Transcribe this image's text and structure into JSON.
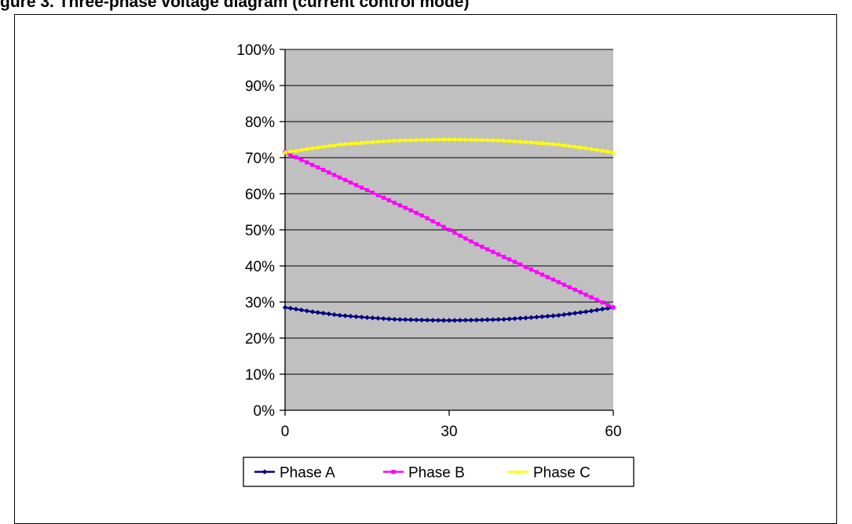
{
  "caption": "gure 3. Three-phase voltage diagram (current control mode)",
  "chart_data": {
    "type": "line",
    "xlim": [
      0,
      60
    ],
    "ylim": [
      0,
      100
    ],
    "x_ticks": [
      0,
      30,
      60
    ],
    "y_ticks": [
      0,
      10,
      20,
      30,
      40,
      50,
      60,
      70,
      80,
      90,
      100
    ],
    "y_tick_suffix": "%",
    "grid": "horizontal",
    "plot_background": "#c0c0c0",
    "legend_position": "bottom",
    "series": [
      {
        "name": "Phase A",
        "color": "#000080",
        "marker": "diamond",
        "points": [
          [
            0,
            28.5
          ],
          [
            5,
            27.3
          ],
          [
            10,
            26.3
          ],
          [
            15,
            25.7
          ],
          [
            20,
            25.2
          ],
          [
            25,
            25.0
          ],
          [
            30,
            24.9
          ],
          [
            35,
            25.0
          ],
          [
            40,
            25.2
          ],
          [
            45,
            25.7
          ],
          [
            50,
            26.3
          ],
          [
            55,
            27.3
          ],
          [
            60,
            28.5
          ]
        ]
      },
      {
        "name": "Phase B",
        "color": "#ff00ff",
        "marker": "square",
        "points": [
          [
            0,
            71.5
          ],
          [
            5,
            68.0
          ],
          [
            10,
            64.5
          ],
          [
            15,
            61.0
          ],
          [
            20,
            57.5
          ],
          [
            25,
            54.0
          ],
          [
            30,
            50.0
          ],
          [
            35,
            46.0
          ],
          [
            40,
            42.5
          ],
          [
            45,
            39.0
          ],
          [
            50,
            35.5
          ],
          [
            55,
            32.0
          ],
          [
            60,
            28.5
          ]
        ]
      },
      {
        "name": "Phase C",
        "color": "#ffff00",
        "marker": "triangle",
        "points": [
          [
            0,
            71.5
          ],
          [
            5,
            72.7
          ],
          [
            10,
            73.7
          ],
          [
            15,
            74.3
          ],
          [
            20,
            74.8
          ],
          [
            25,
            75.0
          ],
          [
            30,
            75.1
          ],
          [
            35,
            75.0
          ],
          [
            40,
            74.8
          ],
          [
            45,
            74.3
          ],
          [
            50,
            73.7
          ],
          [
            55,
            72.7
          ],
          [
            60,
            71.5
          ]
        ]
      }
    ]
  }
}
